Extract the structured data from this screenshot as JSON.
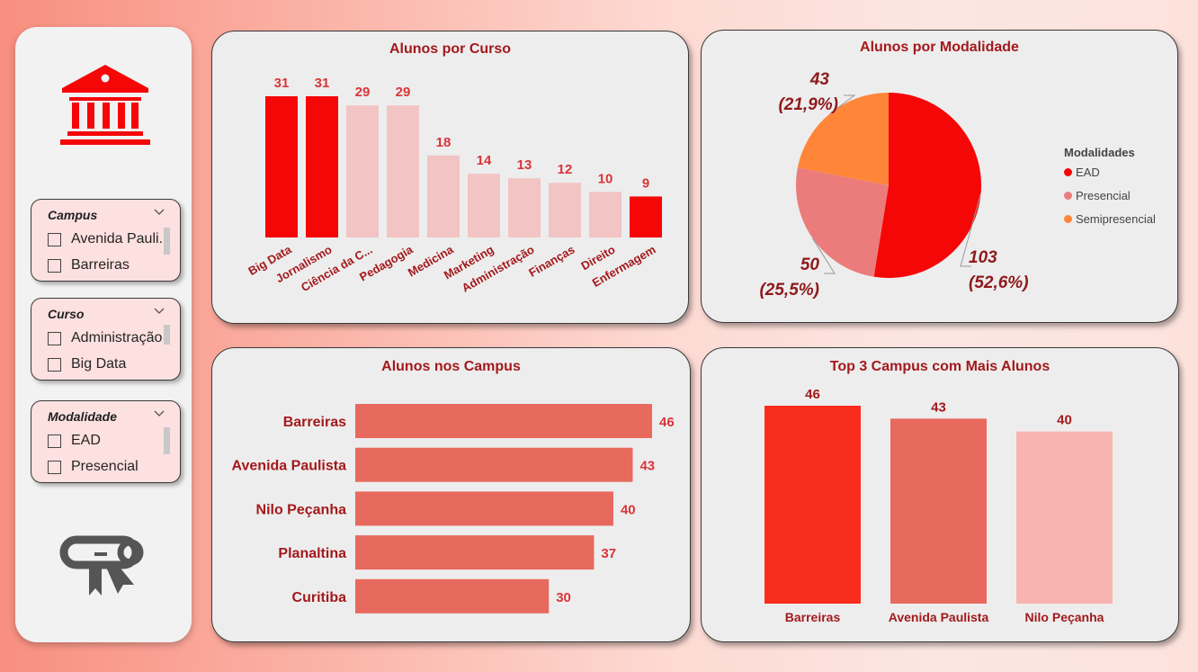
{
  "colors": {
    "accent": "#f50707",
    "light": "#f2c4c4",
    "title": "#a3191c",
    "pie_ead": "#f50707",
    "pie_presencial": "#ec7b7b",
    "pie_semipresencial": "#ff8638",
    "hbar": "#e8695e",
    "top3": [
      "#f82d1d",
      "#e8695e",
      "#f8b4b0"
    ]
  },
  "sidebar": {
    "logo_icon": "institution-icon",
    "bottom_icon": "diploma-icon"
  },
  "slicers": [
    {
      "title": "Campus",
      "items": [
        "Avenida Pauli...",
        "Barreiras"
      ]
    },
    {
      "title": "Curso",
      "items": [
        "Administração",
        "Big Data"
      ]
    },
    {
      "title": "Modalidade",
      "items": [
        "EAD",
        "Presencial"
      ]
    }
  ],
  "charts": {
    "curso": {
      "title": "Alunos por Curso",
      "highlighted": [
        true,
        true,
        false,
        false,
        false,
        false,
        false,
        false,
        false,
        true
      ]
    },
    "modalidade": {
      "title": "Alunos por Modalidade",
      "legend_title": "Modalidades",
      "labels": [
        {
          "value": "43",
          "pct": "(21,9%)"
        },
        {
          "value": "50",
          "pct": "(25,5%)"
        },
        {
          "value": "103",
          "pct": "(52,6%)"
        }
      ]
    },
    "campus": {
      "title": "Alunos nos Campus"
    },
    "top3": {
      "title": "Top 3 Campus com Mais Alunos"
    }
  },
  "chart_data": [
    {
      "type": "bar",
      "title": "Alunos por Curso",
      "categories": [
        "Big Data",
        "Jornalismo",
        "Ciência da C...",
        "Pedagogia",
        "Medicina",
        "Marketing",
        "Administração",
        "Finanças",
        "Direito",
        "Enfermagem"
      ],
      "values": [
        31,
        31,
        29,
        29,
        18,
        14,
        13,
        12,
        10,
        9
      ],
      "ylim": [
        0,
        31
      ]
    },
    {
      "type": "pie",
      "title": "Alunos por Modalidade",
      "categories": [
        "EAD",
        "Presencial",
        "Semipresencial"
      ],
      "values": [
        103,
        50,
        43
      ],
      "percentages": [
        52.6,
        25.5,
        21.9
      ],
      "legend": "right"
    },
    {
      "type": "bar",
      "orientation": "horizontal",
      "title": "Alunos nos Campus",
      "categories": [
        "Barreiras",
        "Avenida Paulista",
        "Nilo Peçanha",
        "Planaltina",
        "Curitiba"
      ],
      "values": [
        46,
        43,
        40,
        37,
        30
      ],
      "xlim": [
        0,
        46
      ]
    },
    {
      "type": "bar",
      "title": "Top 3 Campus com Mais Alunos",
      "categories": [
        "Barreiras",
        "Avenida Paulista",
        "Nilo Peçanha"
      ],
      "values": [
        46,
        43,
        40
      ],
      "ylim": [
        0,
        46
      ]
    }
  ]
}
